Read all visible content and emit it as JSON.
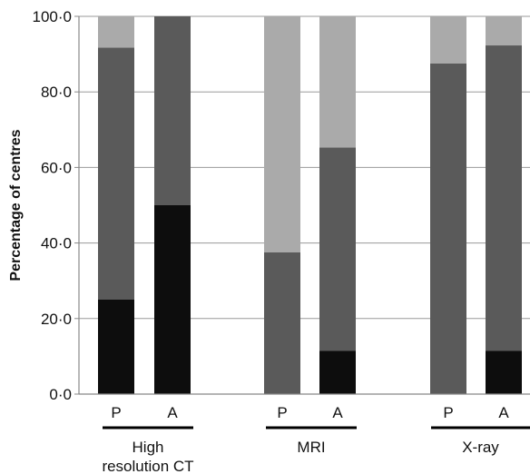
{
  "chart_data": {
    "type": "bar",
    "stacked": true,
    "ylabel": "Percentage of centres",
    "ylim": [
      0,
      100
    ],
    "yticks": [
      0,
      20,
      40,
      60,
      80,
      100
    ],
    "ytick_labels": [
      "0·0",
      "20·0",
      "40·0",
      "60·0",
      "80·0",
      "100·0"
    ],
    "grid": true,
    "groups": [
      {
        "label": "High\nresolution CT",
        "label_lines": [
          "High",
          "resolution CT"
        ],
        "categories": [
          "P",
          "A"
        ]
      },
      {
        "label": "MRI",
        "label_lines": [
          "MRI"
        ],
        "categories": [
          "P",
          "A"
        ]
      },
      {
        "label": "X-ray",
        "label_lines": [
          "X-ray"
        ],
        "categories": [
          "P",
          "A"
        ]
      }
    ],
    "categories": [
      "High resolution CT – P",
      "High resolution CT – A",
      "MRI – P",
      "MRI – A",
      "X-ray – P",
      "X-ray – A"
    ],
    "series": [
      {
        "color": "#0d0d0d",
        "values": [
          25.0,
          50.0,
          0.0,
          11.5,
          0.0,
          11.5
        ]
      },
      {
        "color": "#5a5a5a",
        "values": [
          66.7,
          50.0,
          37.5,
          53.8,
          87.5,
          80.8
        ]
      },
      {
        "color": "#aaaaaa",
        "values": [
          8.3,
          0.0,
          62.5,
          34.7,
          12.5,
          7.7
        ]
      }
    ]
  }
}
